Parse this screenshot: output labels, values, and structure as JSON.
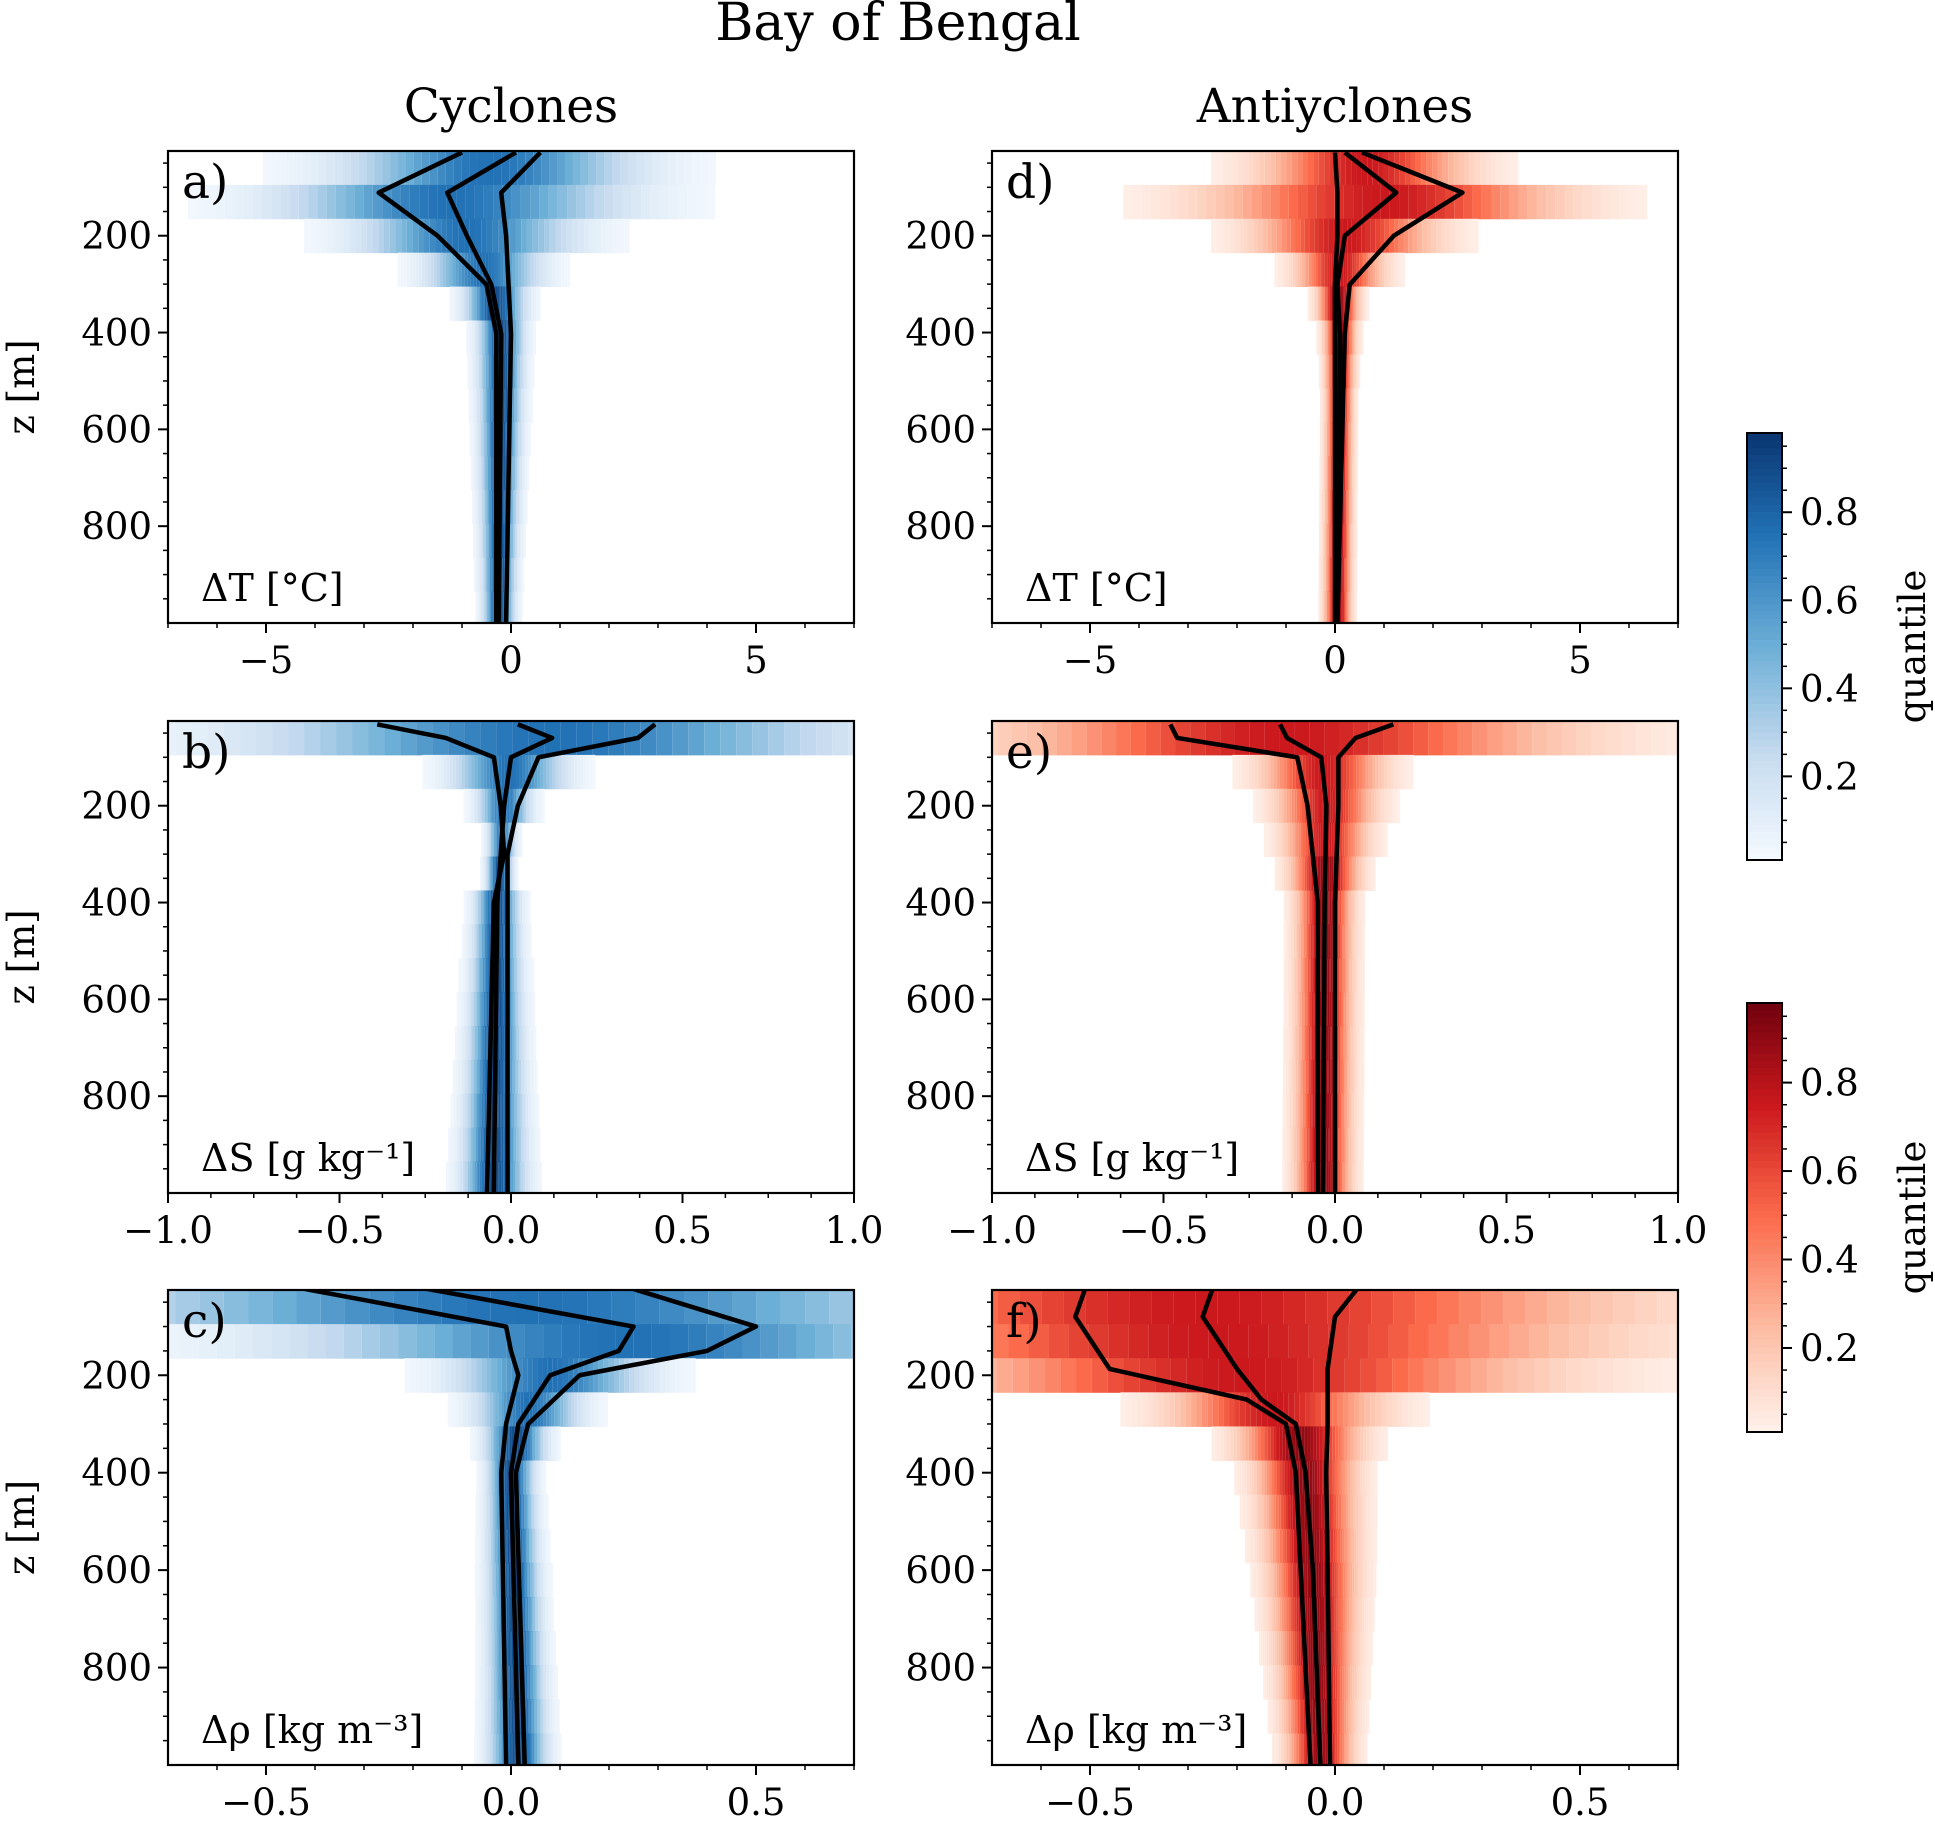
{
  "title": "Bay of Bengal",
  "column_titles": [
    "Cyclones",
    "Antiyclones"
  ],
  "colors": {
    "cyclone_cmap": "Blues",
    "anticyclone_cmap": "Reds",
    "lines": "#000000"
  },
  "colorbars": [
    {
      "label": "quantile",
      "cmap": "Blues",
      "range": [
        0.01,
        0.98
      ],
      "ticks": [
        0.2,
        0.4,
        0.6,
        0.8
      ],
      "tick_labels": [
        "0.2",
        "0.4",
        "0.6",
        "0.8"
      ]
    },
    {
      "label": "quantile",
      "cmap": "Reds",
      "range": [
        0.01,
        0.98
      ],
      "ticks": [
        0.2,
        0.4,
        0.6,
        0.8
      ],
      "tick_labels": [
        "0.2",
        "0.4",
        "0.6",
        "0.8"
      ]
    }
  ],
  "chart_data": [
    {
      "type": "heatmap",
      "panel": "a)",
      "variable": "ΔT [°C]",
      "cmap": "Blues",
      "ylabel": "z [m]",
      "xlim": [
        -7,
        7
      ],
      "ylim": [
        1000,
        25
      ],
      "xticks": [
        -5,
        0,
        5
      ],
      "xtick_labels": [
        "−5",
        "0",
        "5"
      ],
      "yticks": [
        200,
        400,
        600,
        800
      ],
      "ytick_labels": [
        "200",
        "400",
        "600",
        "800"
      ],
      "depth": [
        28,
        111,
        200,
        301,
        403,
        1000
      ],
      "lines": [
        [
          -1.0,
          -2.7,
          -1.5,
          -0.5,
          -0.3,
          -0.3
        ],
        [
          0.1,
          -1.3,
          -0.9,
          -0.4,
          -0.2,
          -0.25
        ],
        [
          0.6,
          -0.2,
          -0.1,
          -0.05,
          0.0,
          -0.1
        ]
      ]
    },
    {
      "type": "heatmap",
      "panel": "b)",
      "variable": "ΔS [g kg⁻¹]",
      "cmap": "Blues",
      "ylabel": "z [m]",
      "xlim": [
        -1,
        1
      ],
      "ylim": [
        1000,
        25
      ],
      "xticks": [
        -1,
        -0.5,
        0,
        0.5,
        1
      ],
      "xtick_labels": [
        "−1.0",
        "−0.5",
        "0.0",
        "0.5",
        "1.0"
      ],
      "yticks": [
        200,
        400,
        600,
        800
      ],
      "ytick_labels": [
        "200",
        "400",
        "600",
        "800"
      ],
      "depth": [
        32,
        60,
        100,
        200,
        300,
        400,
        1000
      ],
      "lines": [
        [
          -0.39,
          -0.19,
          -0.05,
          -0.03,
          -0.02,
          -0.05,
          -0.07
        ],
        [
          0.02,
          0.12,
          0.0,
          -0.02,
          -0.03,
          -0.04,
          -0.05
        ],
        [
          0.42,
          0.37,
          0.08,
          0.02,
          -0.01,
          -0.01,
          -0.01
        ]
      ]
    },
    {
      "type": "heatmap",
      "panel": "c)",
      "variable": "Δρ [kg m⁻³]",
      "cmap": "Blues",
      "ylabel": "z [m]",
      "xlim": [
        -0.7,
        0.7
      ],
      "ylim": [
        1000,
        25
      ],
      "xticks": [
        -0.5,
        0,
        0.5
      ],
      "xtick_labels": [
        "−0.5",
        "0.0",
        "0.5"
      ],
      "yticks": [
        200,
        400,
        600,
        800
      ],
      "ytick_labels": [
        "200",
        "400",
        "600",
        "800"
      ],
      "depth": [
        23,
        100,
        150,
        200,
        300,
        400,
        1000
      ],
      "lines": [
        [
          -0.42,
          -0.01,
          0.0,
          0.015,
          -0.01,
          -0.02,
          -0.01
        ],
        [
          -0.17,
          0.25,
          0.22,
          0.08,
          0.015,
          0.0,
          0.015
        ],
        [
          0.25,
          0.5,
          0.4,
          0.14,
          0.035,
          0.01,
          0.028
        ]
      ]
    },
    {
      "type": "heatmap",
      "panel": "d)",
      "variable": "ΔT [°C]",
      "cmap": "Reds",
      "xlim": [
        -7,
        7
      ],
      "ylim": [
        1000,
        25
      ],
      "xticks": [
        -5,
        0,
        5
      ],
      "xtick_labels": [
        "−5",
        "0",
        "5"
      ],
      "yticks": [
        200,
        400,
        600,
        800
      ],
      "ytick_labels": [
        "200",
        "400",
        "600",
        "800"
      ],
      "depth": [
        28,
        111,
        200,
        301,
        403,
        1000
      ],
      "lines": [
        [
          0.0,
          0.05,
          0.05,
          0.0,
          0.0,
          0.0
        ],
        [
          0.2,
          1.25,
          0.2,
          0.05,
          0.1,
          0.05
        ],
        [
          0.55,
          2.6,
          1.2,
          0.3,
          0.2,
          0.05
        ]
      ]
    },
    {
      "type": "heatmap",
      "panel": "e)",
      "variable": "ΔS [g kg⁻¹]",
      "cmap": "Reds",
      "xlim": [
        -1,
        1
      ],
      "ylim": [
        1000,
        25
      ],
      "xticks": [
        -1,
        -0.5,
        0,
        0.5,
        1
      ],
      "xtick_labels": [
        "−1.0",
        "−0.5",
        "0.0",
        "0.5",
        "1.0"
      ],
      "yticks": [
        200,
        400,
        600,
        800
      ],
      "ytick_labels": [
        "200",
        "400",
        "600",
        "800"
      ],
      "depth": [
        32,
        60,
        100,
        200,
        400,
        1000
      ],
      "lines": [
        [
          -0.48,
          -0.46,
          -0.11,
          -0.08,
          -0.05,
          -0.05
        ],
        [
          -0.16,
          -0.14,
          -0.04,
          -0.025,
          -0.03,
          -0.035
        ],
        [
          0.17,
          0.06,
          0.01,
          0.01,
          0.0,
          0.0
        ]
      ]
    },
    {
      "type": "heatmap",
      "panel": "f)",
      "variable": "Δρ [kg m⁻³]",
      "cmap": "Reds",
      "xlim": [
        -0.7,
        0.7
      ],
      "ylim": [
        1000,
        25
      ],
      "xticks": [
        -0.5,
        0,
        0.5
      ],
      "xtick_labels": [
        "−0.5",
        "0.0",
        "0.5"
      ],
      "yticks": [
        200,
        400,
        600,
        800
      ],
      "ytick_labels": [
        "200",
        "400",
        "600",
        "800"
      ],
      "depth": [
        23,
        80,
        187,
        250,
        300,
        400,
        600,
        1000
      ],
      "lines": [
        [
          -0.51,
          -0.53,
          -0.46,
          -0.18,
          -0.1,
          -0.08,
          -0.07,
          -0.05
        ],
        [
          -0.25,
          -0.27,
          -0.2,
          -0.15,
          -0.08,
          -0.06,
          -0.045,
          -0.03
        ],
        [
          0.045,
          0.0,
          -0.015,
          -0.015,
          -0.015,
          -0.018,
          -0.015,
          -0.01
        ]
      ]
    }
  ]
}
